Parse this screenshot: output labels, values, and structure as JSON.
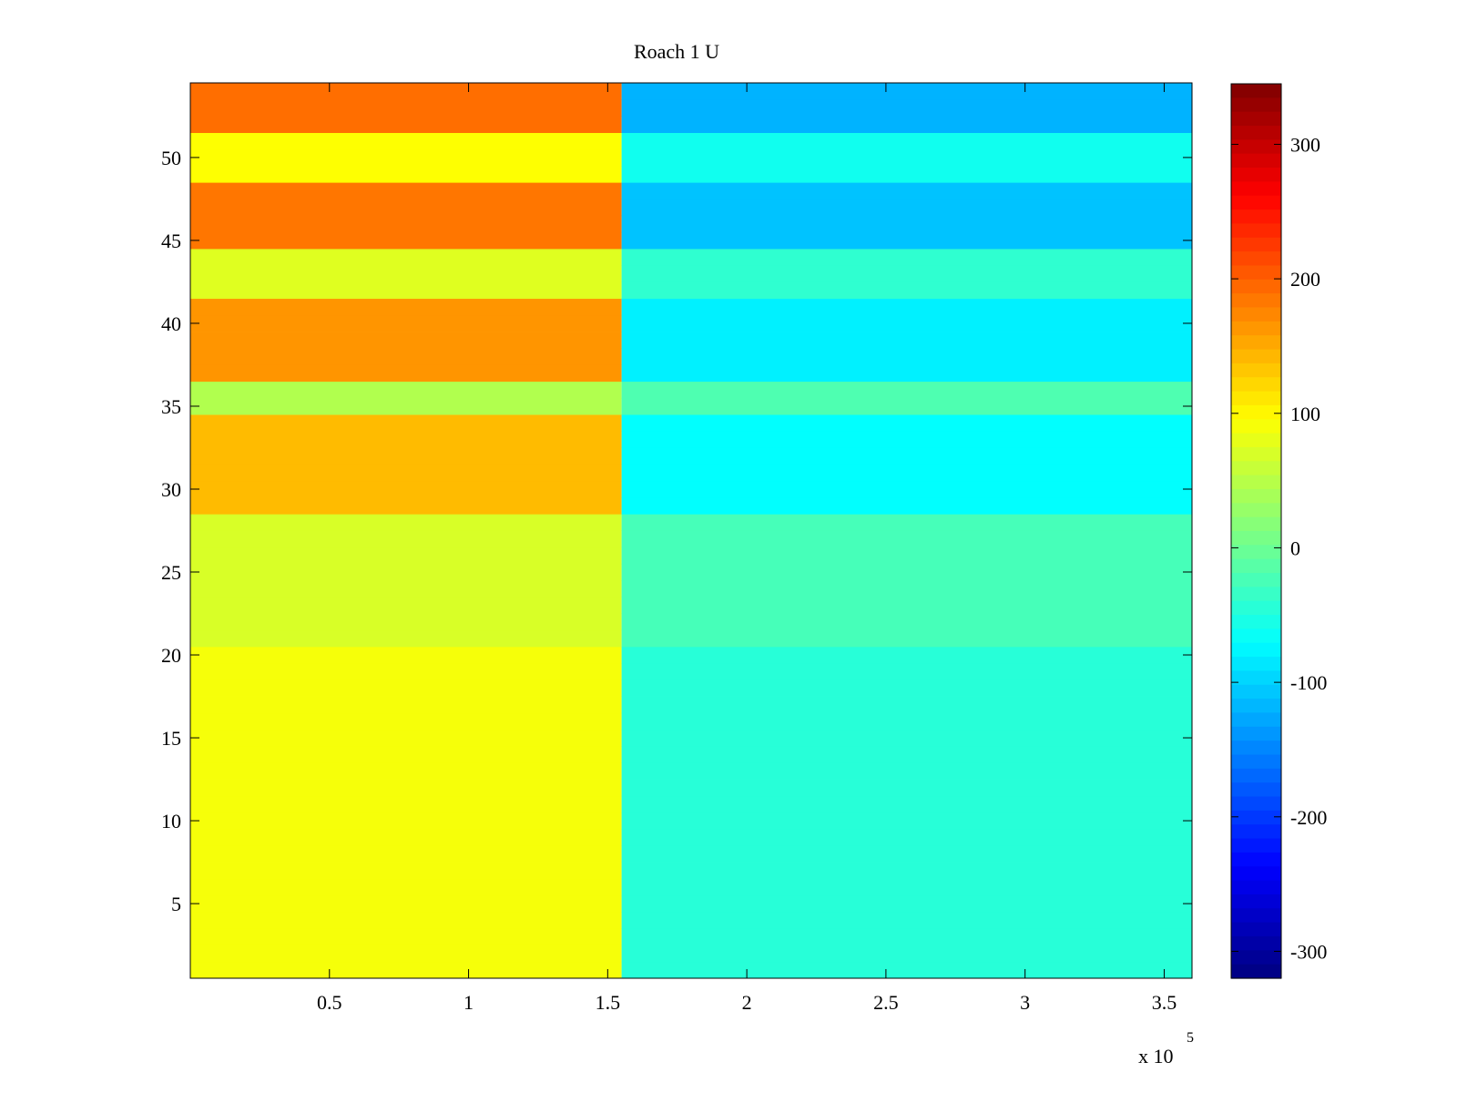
{
  "chart_data": {
    "type": "heatmap",
    "title": "Roach 1 U",
    "xlabel": "",
    "ylabel": "",
    "x_scale_label": "x 10",
    "x_scale_exponent": "5",
    "xlim": [
      0,
      3.6
    ],
    "ylim": [
      0.5,
      54.5
    ],
    "x_ticks": [
      {
        "value": 0.5,
        "label": "0.5"
      },
      {
        "value": 1.0,
        "label": "1"
      },
      {
        "value": 1.5,
        "label": "1.5"
      },
      {
        "value": 2.0,
        "label": "2"
      },
      {
        "value": 2.5,
        "label": "2.5"
      },
      {
        "value": 3.0,
        "label": "3"
      },
      {
        "value": 3.5,
        "label": "3.5"
      }
    ],
    "y_ticks": [
      {
        "value": 5,
        "label": "5"
      },
      {
        "value": 10,
        "label": "10"
      },
      {
        "value": 15,
        "label": "15"
      },
      {
        "value": 20,
        "label": "20"
      },
      {
        "value": 25,
        "label": "25"
      },
      {
        "value": 30,
        "label": "30"
      },
      {
        "value": 35,
        "label": "35"
      },
      {
        "value": 40,
        "label": "40"
      },
      {
        "value": 45,
        "label": "45"
      },
      {
        "value": 50,
        "label": "50"
      }
    ],
    "colorbar": {
      "colormap": "jet",
      "clim": [
        -320,
        345
      ],
      "ticks": [
        {
          "value": 300,
          "label": "300"
        },
        {
          "value": 200,
          "label": "200"
        },
        {
          "value": 100,
          "label": "100"
        },
        {
          "value": 0,
          "label": "0"
        },
        {
          "value": -100,
          "label": "-100"
        },
        {
          "value": -200,
          "label": "-200"
        },
        {
          "value": -300,
          "label": "-300"
        }
      ]
    },
    "rows": 54,
    "segments": [
      {
        "x_start": 0.0,
        "x_end": 1.55,
        "value_rows_1_20": 90,
        "value_rows_21_28": 70,
        "value_rows_29_34": 140,
        "value_rows_35_36": 45,
        "value_rows_37_41": 165,
        "value_rows_42_44": 75,
        "value_rows_45_48": 185,
        "value_rows_49_51": 95,
        "value_rows_52_54": 190
      },
      {
        "x_start": 1.55,
        "x_end": 3.6,
        "value_rows_1_20": -45,
        "value_rows_21_28": -25,
        "value_rows_29_34": -70,
        "value_rows_35_36": -20,
        "value_rows_37_41": -80,
        "value_rows_42_44": -40,
        "value_rows_45_48": -110,
        "value_rows_49_51": -60,
        "value_rows_52_54": -120
      }
    ],
    "grid": false,
    "legend": "colorbar-right"
  }
}
